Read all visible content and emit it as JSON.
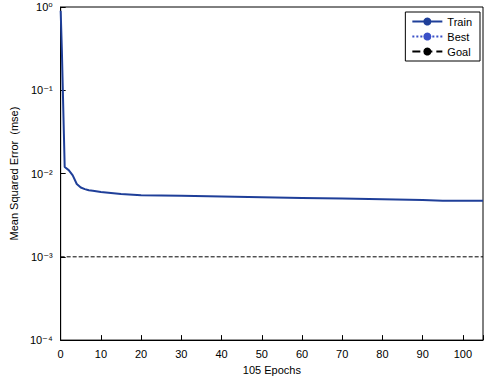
{
  "chart_data": {
    "type": "line",
    "xlabel": "105 Epochs",
    "ylabel": "Mean Squared Error  (mse)",
    "log": "y",
    "grid": false,
    "legend": "northeast",
    "xlim": [
      0,
      105
    ],
    "xticks": [
      0,
      10,
      20,
      30,
      40,
      50,
      60,
      70,
      80,
      90,
      100
    ],
    "ylim": [
      0.0001,
      1
    ],
    "yticks": [
      {
        "value": 0.0001,
        "label": "10⁻⁴"
      },
      {
        "value": 0.001,
        "label": "10⁻³"
      },
      {
        "value": 0.01,
        "label": "10⁻²"
      },
      {
        "value": 0.1,
        "label": "10⁻¹"
      },
      {
        "value": 1,
        "label": "10⁰"
      }
    ],
    "series": [
      {
        "name": "Train",
        "color": "#1f3f99",
        "line_style": "solid",
        "marker": "none",
        "x": [
          0,
          0.3,
          0.8,
          1,
          2,
          3,
          4,
          5,
          6,
          7,
          8,
          10,
          15,
          20,
          30,
          40,
          50,
          60,
          70,
          80,
          90,
          95,
          100,
          105
        ],
        "values": [
          0.9,
          0.3,
          0.03,
          0.012,
          0.011,
          0.0095,
          0.0075,
          0.0068,
          0.0065,
          0.0063,
          0.0062,
          0.006,
          0.0057,
          0.0055,
          0.0054,
          0.0053,
          0.0052,
          0.0051,
          0.005,
          0.0049,
          0.0048,
          0.0047,
          0.0047,
          0.0047
        ]
      },
      {
        "name": "Best",
        "color": "#3a50c8",
        "line_style": "dotted",
        "marker": "none",
        "x": [
          105
        ],
        "values": [
          0.0047
        ]
      },
      {
        "name": "Goal",
        "color": "#000000",
        "line_style": "dashed",
        "marker": "none",
        "x": [
          0,
          105
        ],
        "values": [
          0.001,
          0.001
        ]
      }
    ]
  }
}
